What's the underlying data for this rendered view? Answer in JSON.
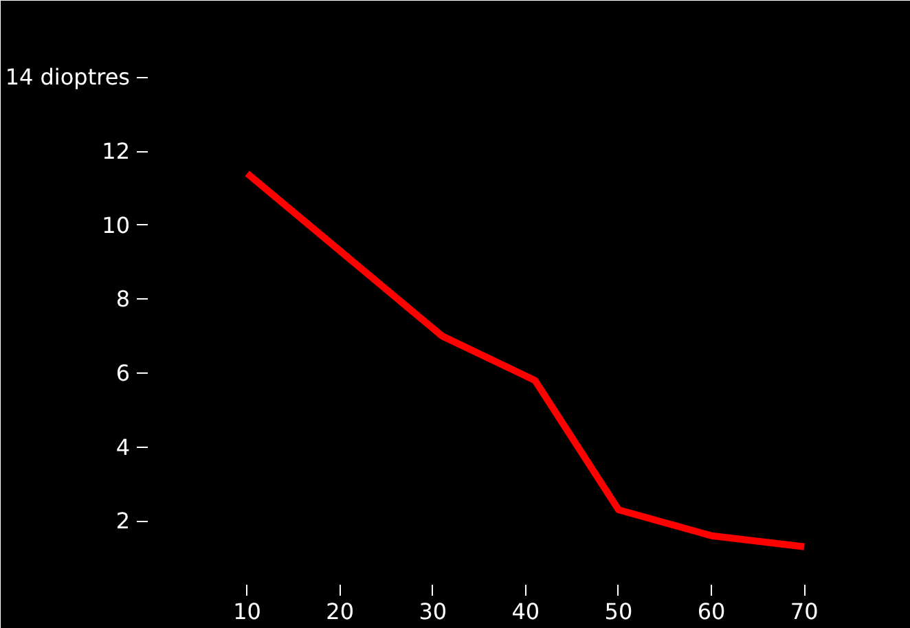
{
  "chart_data": {
    "type": "line",
    "x": [
      10,
      31,
      41,
      50,
      60,
      70
    ],
    "series": [
      {
        "color": "#ff0000",
        "values": [
          11.4,
          7.0,
          5.8,
          2.3,
          1.6,
          1.3
        ]
      }
    ],
    "xlim": [
      -1,
      78.5
    ],
    "ylim": [
      0.2,
      15.7
    ],
    "xticks": [
      10,
      20,
      30,
      40,
      50,
      60,
      70
    ],
    "yticks": [
      2,
      4,
      6,
      8,
      10,
      12,
      {
        "value": 14,
        "label": "14 dioptres"
      }
    ],
    "grid": false,
    "marker": "none",
    "line_style": "solid"
  }
}
